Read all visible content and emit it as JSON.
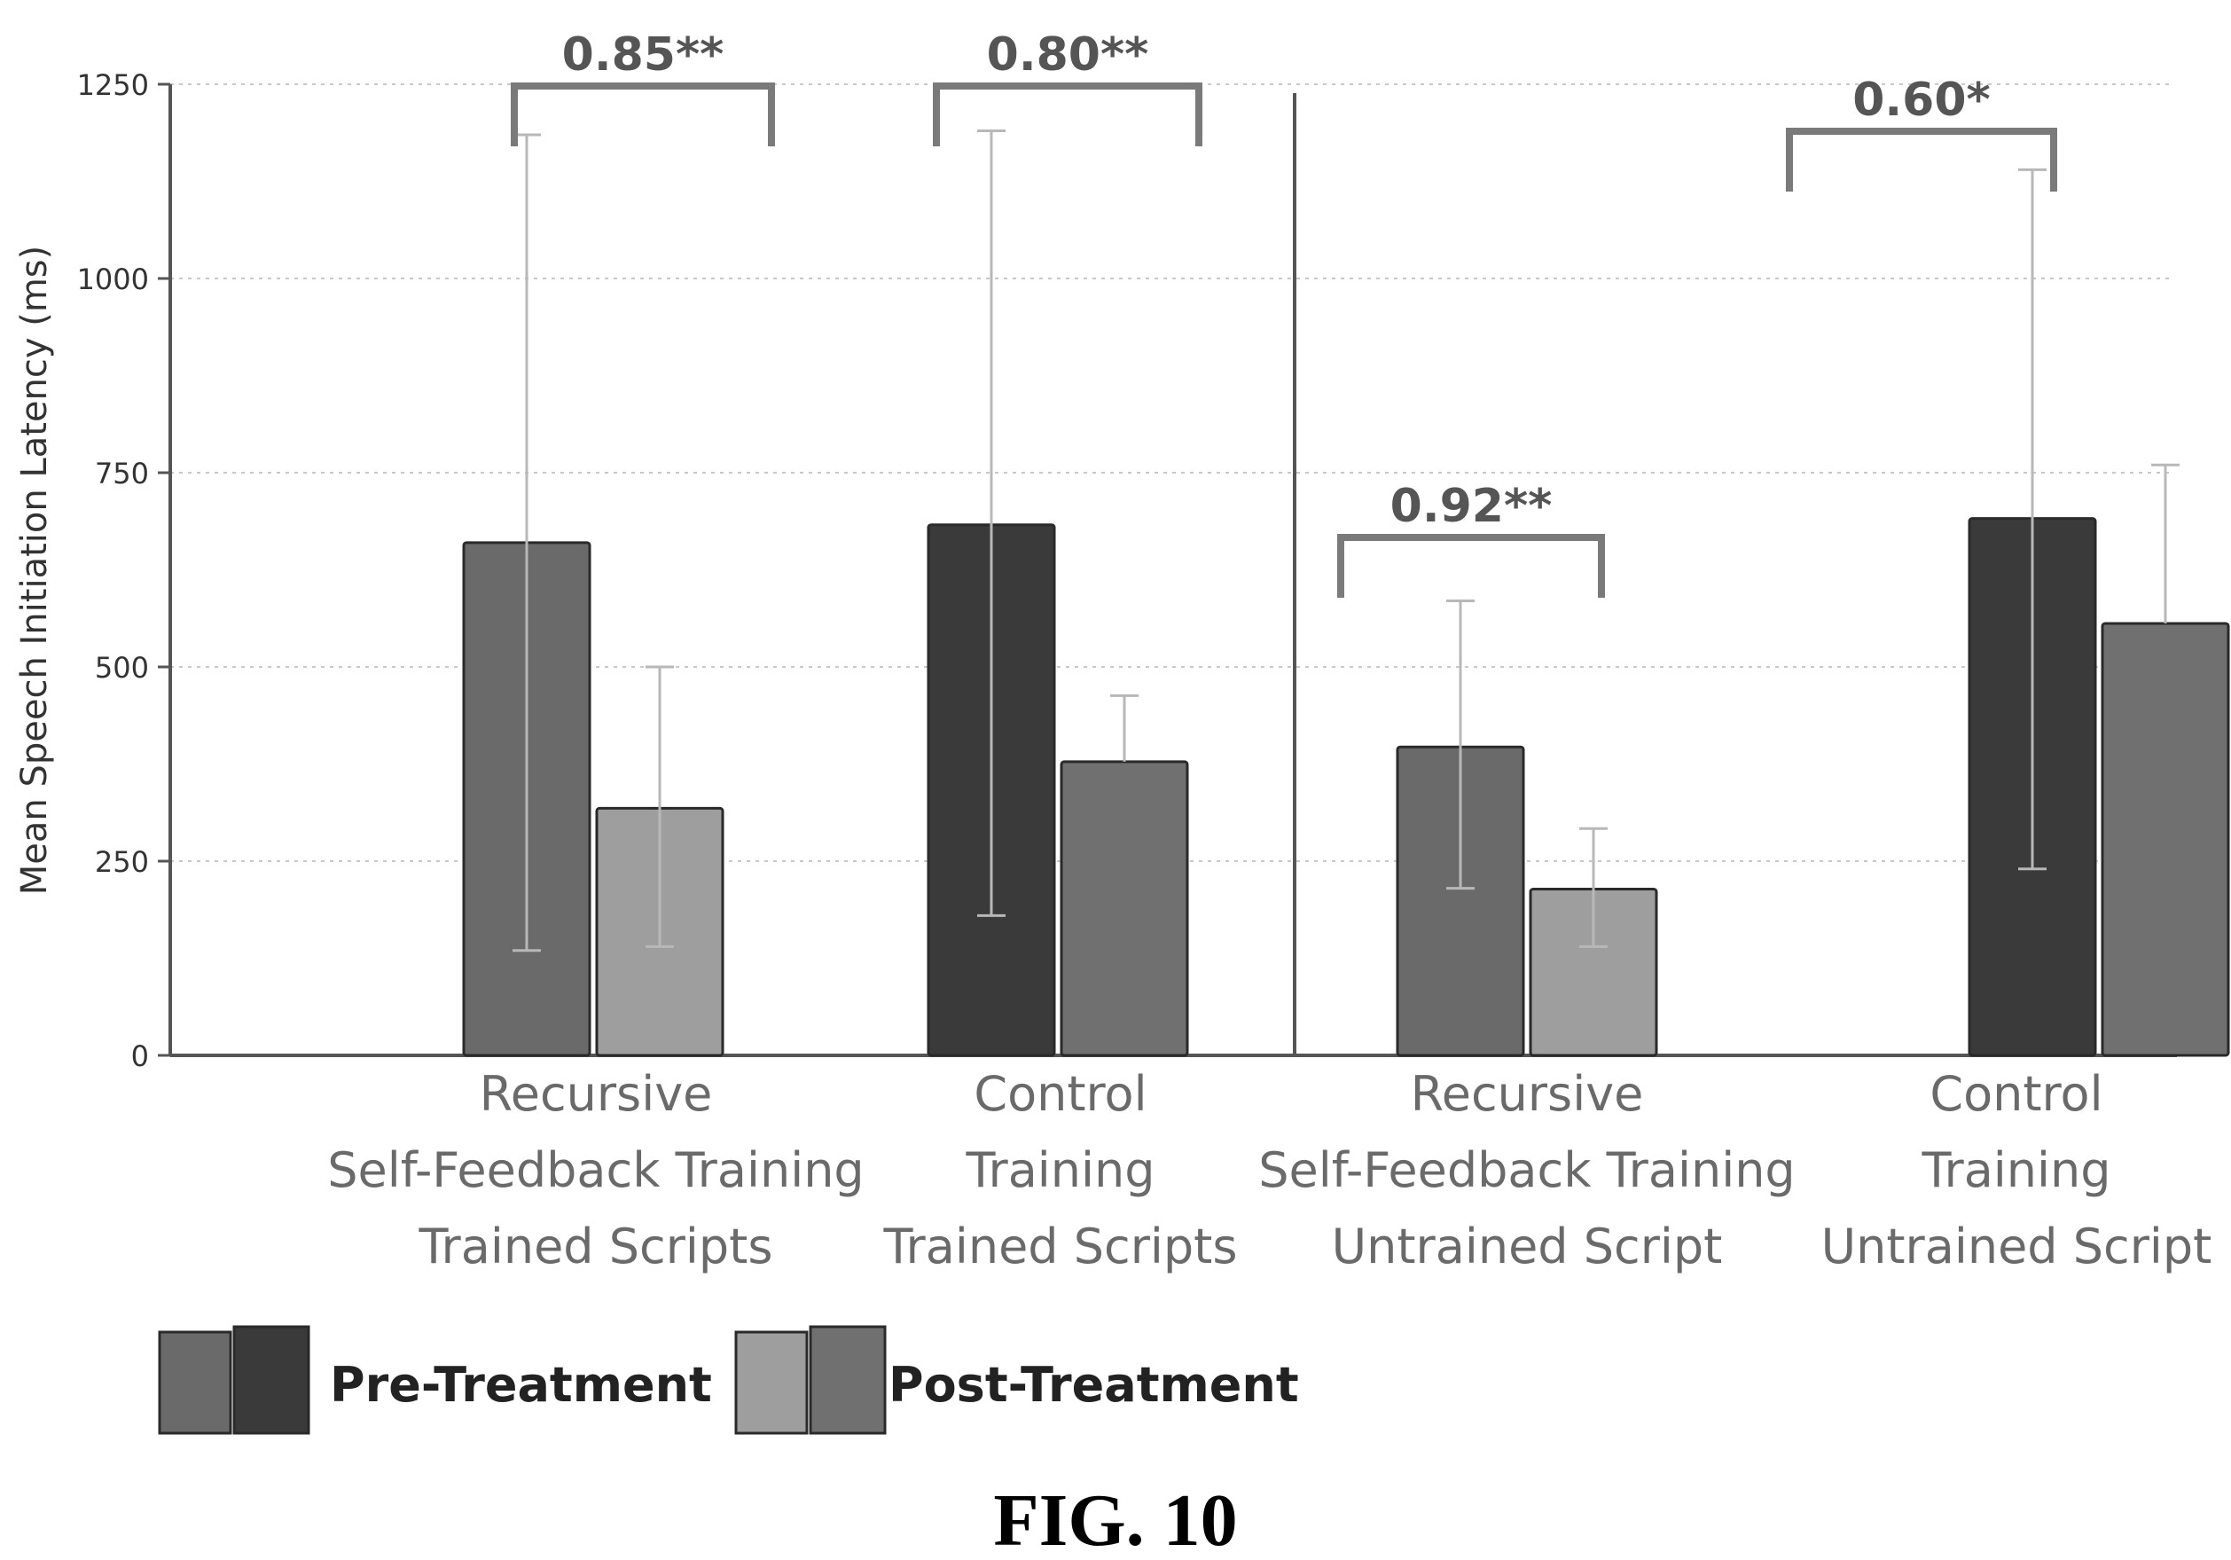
{
  "chart_data": {
    "type": "bar",
    "ylabel": "Mean Speech Initiation Latency (ms)",
    "ylim": [
      0,
      1250
    ],
    "yticks": [
      0,
      250,
      500,
      750,
      1000,
      1250
    ],
    "grid": true,
    "categories": [
      [
        "Recursive",
        "Self-Feedback Training",
        "Trained Scripts"
      ],
      [
        "Control",
        "Training",
        "Trained Scripts"
      ],
      [
        "Recursive",
        "Self-Feedback Training",
        "Untrained Script"
      ],
      [
        "Control",
        "Training",
        "Untrained Script"
      ]
    ],
    "series": [
      {
        "name": "Pre-Treatment",
        "values": [
          660,
          683,
          397,
          691
        ],
        "error_high": [
          1185,
          1190,
          585,
          1140
        ],
        "error_low": [
          135,
          180,
          215,
          240
        ],
        "colors": [
          "#6a6a6a",
          "#3a3a3a",
          "#6a6a6a",
          "#3a3a3a"
        ]
      },
      {
        "name": "Post-Treatment",
        "values": [
          318,
          378,
          214,
          556
        ],
        "error_high": [
          500,
          463,
          292,
          760
        ],
        "error_low": [
          140,
          null,
          140,
          null
        ],
        "colors": [
          "#9e9e9e",
          "#707070",
          "#9e9e9e",
          "#707070"
        ]
      }
    ],
    "annotations": [
      "0.85**",
      "0.80**",
      "0.92**",
      "0.60*"
    ],
    "legend_position": "bottom-left"
  },
  "caption": "FIG. 10"
}
